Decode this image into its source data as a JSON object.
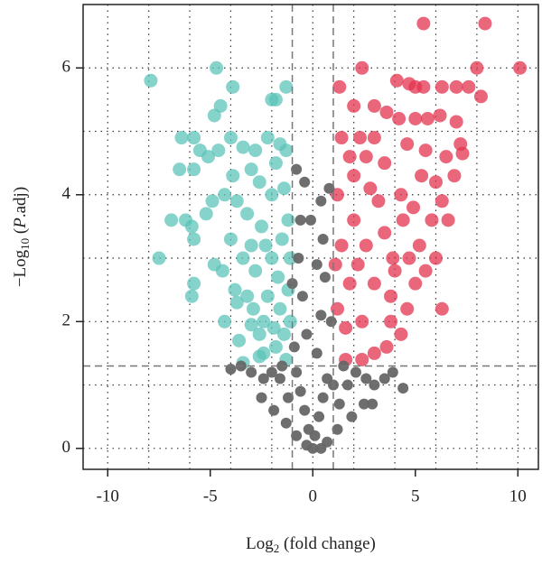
{
  "chart_data": {
    "type": "scatter",
    "x_label": [
      "Log",
      "2",
      " (fold change)"
    ],
    "y_label": [
      "−Log",
      "10",
      " (",
      "P",
      ".adj)"
    ],
    "xlim": [
      -11.2,
      11
    ],
    "ylim": [
      -0.33,
      7
    ],
    "xticks": [
      -10,
      -5,
      0,
      5,
      10
    ],
    "yticks": [
      0,
      2,
      4,
      6
    ],
    "grid": true,
    "xgrid": [
      -10,
      -8,
      -6,
      -4,
      -2,
      0,
      2,
      4,
      6,
      8,
      10
    ],
    "ygrid": [
      0,
      1,
      2,
      3,
      4,
      5,
      6
    ],
    "thresholds": {
      "x": [
        -1,
        1
      ],
      "y": 1.3
    },
    "series": [
      {
        "color": "#5cc4b8",
        "x": [
          -7.9,
          -4.7,
          -4.8,
          -4.5,
          -3.9,
          -2.0,
          -1.3,
          -1.8,
          -6.4,
          -5.8,
          -5.5,
          -6.5,
          -5.8,
          -5.1,
          -4.6,
          -4.0,
          -3.4,
          -2.8,
          -2.2,
          -1.6,
          -1.3,
          -6.9,
          -6.2,
          -5.9,
          -5.8,
          -5.2,
          -4.9,
          -4.3,
          -3.7,
          -7.5,
          -5.9,
          -5.8,
          -4.8,
          -4.4,
          -3.8,
          -3.2,
          -4.3,
          -3.6,
          -3.0,
          -2.4,
          -1.8,
          -1.3,
          -3.4,
          -2.6,
          -3.0,
          -2.5,
          -2.0,
          -1.5,
          -2.8,
          -2.2,
          -1.6,
          -1.2,
          -3.2,
          -2.6,
          -2.0,
          -1.4,
          -1.2,
          -3.0,
          -1.8,
          -2.4,
          -1.9,
          -1.4,
          -2.9,
          -3.4,
          -2.3,
          -1.7,
          -1.1,
          -1.1,
          -2.6,
          -3.9,
          -4.0,
          -3.7
        ],
        "values": [
          5.8,
          6.0,
          5.25,
          5.4,
          5.7,
          5.5,
          5.7,
          5.5,
          4.9,
          4.9,
          4.7,
          4.4,
          4.4,
          4.6,
          4.7,
          4.9,
          4.75,
          4.7,
          4.9,
          4.8,
          4.7,
          3.6,
          3.6,
          3.5,
          3.3,
          3.7,
          3.9,
          4.0,
          3.9,
          3.0,
          2.4,
          2.6,
          2.9,
          2.8,
          2.5,
          2.4,
          2.0,
          1.7,
          1.95,
          1.5,
          1.6,
          1.4,
          1.35,
          1.8,
          3.2,
          3.5,
          3.0,
          3.3,
          2.8,
          2.4,
          2.2,
          2.5,
          3.7,
          4.2,
          4.0,
          4.1,
          3.6,
          4.4,
          4.5,
          2.0,
          1.9,
          1.8,
          2.2,
          3.0,
          3.2,
          2.7,
          2.0,
          3.0,
          1.45,
          4.3,
          3.3,
          2.3
        ]
      },
      {
        "color": "#e3334f",
        "x": [
          5.4,
          8.4,
          8.0,
          10.1,
          8.2,
          1.3,
          2.4,
          4.1,
          4.7,
          5.0,
          5.4,
          6.3,
          7.0,
          7.6,
          2.0,
          3.0,
          3.6,
          4.2,
          5.0,
          5.6,
          6.2,
          7.0,
          1.4,
          2.3,
          3.0,
          4.6,
          5.5,
          7.2,
          7.3,
          6.5,
          5.3,
          6.0,
          6.9,
          6.3,
          6.6,
          5.8,
          4.9,
          4.3,
          5.2,
          4.7,
          5.5,
          5.0,
          6.3,
          4.6,
          3.8,
          4.3,
          3.6,
          3.0,
          2.4,
          1.6,
          6.0,
          4.0,
          3.5,
          2.6,
          2.0,
          1.4,
          1.2,
          1.8,
          2.4,
          3.0,
          1.2,
          2.0,
          2.8,
          3.5,
          1.6,
          3.2,
          3.9,
          1.1,
          2.2,
          4.4,
          1.8,
          2.6,
          3.8
        ],
        "values": [
          6.7,
          6.7,
          6.0,
          6.0,
          5.55,
          5.7,
          6.0,
          5.8,
          5.75,
          5.7,
          5.7,
          5.7,
          5.7,
          5.7,
          5.4,
          5.4,
          5.3,
          5.2,
          5.2,
          5.2,
          5.25,
          5.15,
          4.9,
          4.9,
          4.9,
          4.8,
          4.7,
          4.8,
          4.65,
          4.6,
          4.3,
          4.2,
          4.3,
          3.9,
          3.6,
          3.6,
          3.8,
          4.0,
          3.2,
          3.0,
          2.8,
          2.6,
          2.2,
          2.2,
          2.0,
          1.8,
          1.6,
          1.5,
          1.4,
          1.4,
          3.0,
          2.8,
          3.4,
          3.2,
          3.6,
          3.2,
          2.2,
          2.6,
          2.0,
          2.6,
          4.0,
          4.3,
          4.1,
          4.5,
          1.9,
          3.9,
          3.0,
          2.9,
          2.9,
          3.6,
          4.6,
          4.6,
          2.4
        ]
      },
      {
        "color": "#666666",
        "x": [
          0,
          0.1,
          -0.2,
          0.3,
          -0.4,
          0.5,
          -0.6,
          0.7,
          -0.8,
          0.2,
          -0.3,
          0.4,
          -0.5,
          0.6,
          -0.7,
          0.5,
          -0.6,
          0.4,
          -0.4,
          -0.8,
          0.8,
          -1.0,
          0.9,
          -0.9,
          1.0,
          -1.2,
          1.3,
          -1.6,
          1.7,
          -2.0,
          2.1,
          -2.4,
          2.6,
          -3.0,
          3.0,
          -3.5,
          3.5,
          -2.5,
          2.5,
          -1.9,
          1.9,
          -1.3,
          1.2,
          -0.8,
          0.7,
          2.9,
          3.9,
          4.4,
          -4.0,
          -0.3,
          0.4,
          0.2,
          -0.1,
          1.5,
          -1.5
        ],
        "values": [
          0,
          0.2,
          0.3,
          0.5,
          0.6,
          0.8,
          0.9,
          1.1,
          1.2,
          1.5,
          1.8,
          2.1,
          2.4,
          2.7,
          3.0,
          3.3,
          3.6,
          3.9,
          4.2,
          4.4,
          4.1,
          2.6,
          2.0,
          1.6,
          1.0,
          0.8,
          0.7,
          1.1,
          1.0,
          1.2,
          1.2,
          1.1,
          1.1,
          1.2,
          1.0,
          1.3,
          1.1,
          0.8,
          0.7,
          0.6,
          0.5,
          0.4,
          0.3,
          0.2,
          0.1,
          0.7,
          1.2,
          0.95,
          1.25,
          0.05,
          0.0,
          2.9,
          3.6,
          1.3,
          1.3
        ]
      }
    ]
  }
}
